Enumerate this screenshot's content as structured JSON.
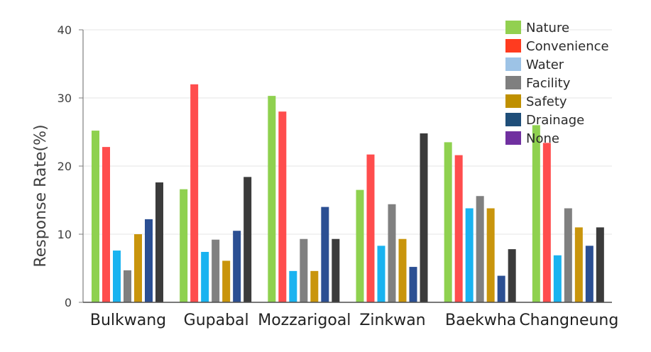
{
  "chart_data": {
    "type": "bar",
    "title": "",
    "xlabel": "",
    "ylabel": "Response Rate(%)",
    "ylim": [
      0,
      40
    ],
    "yticks": [
      "0",
      "10",
      "20",
      "30",
      "40"
    ],
    "grid": true,
    "legend_position": "top-right",
    "categories": [
      "Bulkwang",
      "Gupabal",
      "Mozzarigoal",
      "Zinkwan",
      "Baekwha",
      "Changneung"
    ],
    "legend": [
      {
        "name": "Nature",
        "color": "#92d050"
      },
      {
        "name": "Convenience",
        "color": "#ff3b1f"
      },
      {
        "name": "Water",
        "color": "#9dc3e6"
      },
      {
        "name": "Facility",
        "color": "#7f7f7f"
      },
      {
        "name": "Safety",
        "color": "#bf9000"
      },
      {
        "name": "Drainage",
        "color": "#1f4e79"
      },
      {
        "name": "None",
        "color": "#7030a0"
      }
    ],
    "series": [
      {
        "name": "Nature",
        "color": "#8fd14f",
        "values": [
          25.2,
          16.6,
          30.3,
          16.5,
          23.5,
          26.0
        ]
      },
      {
        "name": "Convenience",
        "color": "#ff4d4d",
        "values": [
          22.8,
          32.0,
          28.0,
          21.7,
          21.6,
          23.4
        ]
      },
      {
        "name": "Water",
        "color": "#19b3f0",
        "values": [
          7.6,
          7.4,
          4.6,
          8.3,
          13.8,
          6.9
        ]
      },
      {
        "name": "Facility",
        "color": "#808080",
        "values": [
          4.7,
          9.2,
          9.3,
          14.4,
          15.6,
          13.8
        ]
      },
      {
        "name": "Safety",
        "color": "#c9950c",
        "values": [
          10.0,
          6.1,
          4.6,
          9.3,
          13.8,
          11.0
        ]
      },
      {
        "name": "Drainage",
        "color": "#2b4f93",
        "values": [
          12.2,
          10.5,
          14.0,
          5.2,
          3.9,
          8.3
        ]
      },
      {
        "name": "None",
        "color": "#3b3b3b",
        "values": [
          17.6,
          18.4,
          9.3,
          24.8,
          7.8,
          11.0
        ]
      }
    ]
  }
}
